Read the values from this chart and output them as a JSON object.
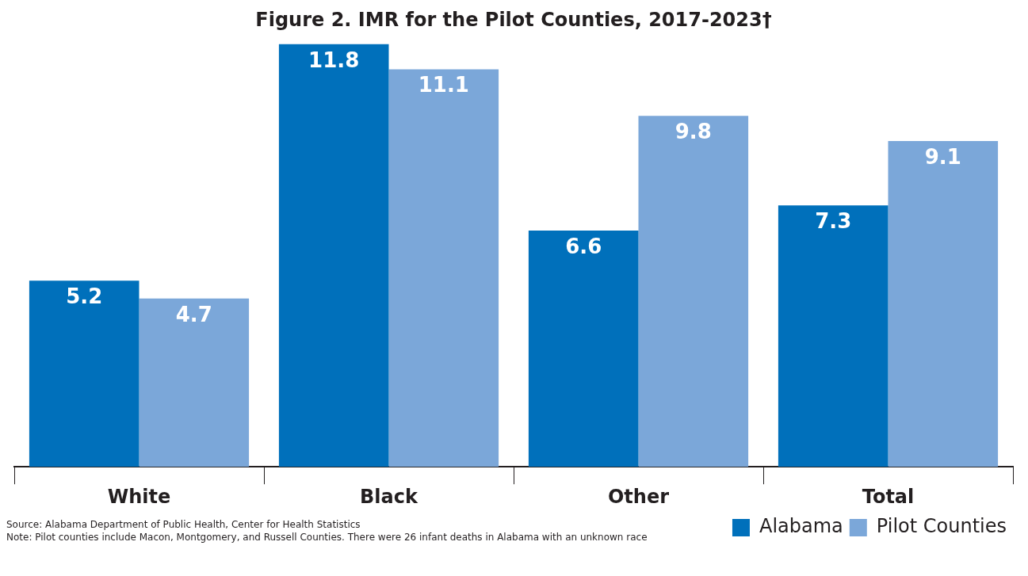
{
  "chart_data": {
    "type": "bar",
    "title": "Figure 2. IMR for the Pilot Counties, 2017-2023†",
    "categories": [
      "White",
      "Black",
      "Other",
      "Total"
    ],
    "series": [
      {
        "name": "Alabama",
        "color": "#0070bb",
        "values": [
          5.2,
          11.8,
          6.6,
          7.3
        ]
      },
      {
        "name": "Pilot Counties",
        "color": "#7ba7d9",
        "values": [
          4.7,
          11.1,
          9.8,
          9.1
        ]
      }
    ],
    "data_labels": true,
    "grid": false,
    "legend": "bottom right",
    "annotations": [
      "Source: Alabama Department of Public Health, Center for Health Statistics",
      "Note: Pilot counties include Macon, Montgomery, and Russell Counties. There were 26 infant deaths in Alabama with an unknown race"
    ]
  }
}
